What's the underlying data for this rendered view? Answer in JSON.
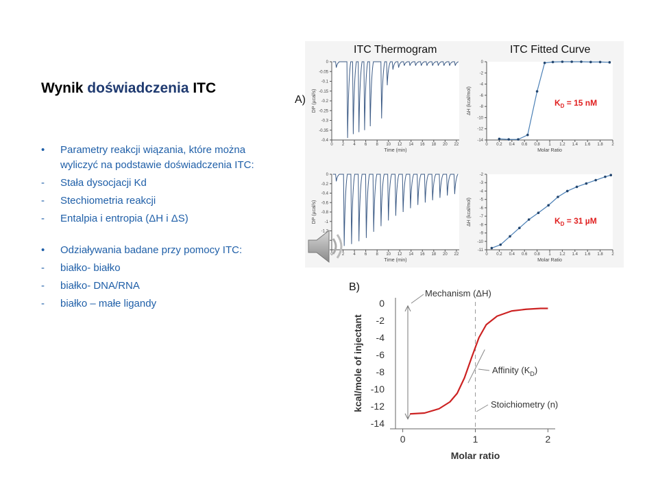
{
  "slide": {
    "title_part1": "Wynik ",
    "title_accent": "doświadczenia",
    "title_part2": " ITC",
    "bullets": [
      {
        "marker": "•",
        "text": "Parametry reakcji wiązania, które można wyliczyć na podstawie doświadczenia ITC:"
      },
      {
        "marker": "-",
        "text": "Stała dysocjacji Kd"
      },
      {
        "marker": "-",
        "text": "Stechiometria reakcji"
      },
      {
        "marker": "-",
        "text": "Entalpia i entropia (ΔH i ΔS)"
      }
    ],
    "bullets2": [
      {
        "marker": "•",
        "text": "Odziaływania badane przy pomocy ITC:"
      },
      {
        "marker": "-",
        "text": "białko- białko"
      },
      {
        "marker": "-",
        "text": "białko- DNA/RNA"
      },
      {
        "marker": "-",
        "text": "białko – małe ligandy"
      }
    ]
  },
  "figure": {
    "label_a": "A)",
    "label_b": "B)",
    "col1_title": "ITC Thermogram",
    "col2_title": "ITC Fitted Curve",
    "thermo_ylabel": "DP (µcal/s)",
    "thermo_xlabel": "Time (min)",
    "fit_ylabel": "ΔH (kcal/mol)",
    "fit_xlabel": "Molar Ratio",
    "kd_top": "K",
    "kd_top_sub": "D",
    "kd_top_val": " = 15 nM",
    "kd_bottom": "K",
    "kd_bottom_sub": "D",
    "kd_bottom_val": " = 31 µM",
    "b_ylabel": "kcal/mole of injectant",
    "b_xlabel": "Molar ratio",
    "b_annot_mechanism": "Mechanism (ΔH)",
    "b_annot_affinity": "Affinity (K",
    "b_annot_affinity_sub": "D",
    "b_annot_affinity_end": ")",
    "b_annot_stoich": "Stoichiometry (n)"
  },
  "chart_data": [
    {
      "type": "line",
      "title": "ITC Thermogram",
      "xlabel": "Time (min)",
      "ylabel": "DP (µcal/s)",
      "xlim": [
        0,
        22.5
      ],
      "ylim": [
        -0.4,
        0
      ],
      "xticks": [
        "0",
        "2",
        "4",
        "6",
        "8",
        "10",
        "12",
        "14",
        "16",
        "18",
        "20",
        "22"
      ],
      "yticks": [
        "0",
        "-0.05",
        "-0.1",
        "-0.15",
        "-0.2",
        "-0.25",
        "-0.3",
        "-0.35",
        "-0.4"
      ],
      "peaks": {
        "x": [
          0.8,
          2.8,
          3.8,
          4.8,
          5.8,
          6.8,
          8.8,
          9.8,
          10.8,
          11.8,
          12.8,
          13.8,
          14.8,
          15.8,
          16.8,
          17.8,
          18.8,
          19.8,
          20.8,
          21.8
        ],
        "depth": [
          -0.03,
          -0.39,
          -0.37,
          -0.36,
          -0.35,
          -0.33,
          -0.29,
          -0.12,
          -0.04,
          -0.03,
          -0.02,
          -0.02,
          -0.02,
          -0.02,
          -0.02,
          -0.02,
          -0.02,
          -0.02,
          -0.02,
          -0.02
        ]
      }
    },
    {
      "type": "line",
      "title": "ITC Fitted Curve",
      "xlabel": "Molar Ratio",
      "ylabel": "ΔH (kcal/mol)",
      "xlim": [
        0,
        2
      ],
      "ylim": [
        -14,
        0
      ],
      "xticks": [
        "0",
        "0.2",
        "0.4",
        "0.6",
        "0.8",
        "1",
        "1.2",
        "1.4",
        "1.6",
        "1.8",
        "2"
      ],
      "yticks": [
        "0",
        "-2",
        "-4",
        "-6",
        "-8",
        "-10",
        "-12",
        "-14"
      ],
      "x": [
        0.2,
        0.35,
        0.5,
        0.65,
        0.8,
        0.92,
        1.05,
        1.2,
        1.35,
        1.5,
        1.65,
        1.8,
        1.95
      ],
      "y": [
        -13.8,
        -13.9,
        -13.9,
        -13.1,
        -5.3,
        -0.2,
        -0.05,
        0,
        0,
        0,
        -0.05,
        -0.05,
        -0.1
      ]
    },
    {
      "type": "line",
      "xlabel": "Time (min)",
      "ylabel": "DP (µcal/s)",
      "xlim": [
        0,
        22.5
      ],
      "ylim": [
        -1.6,
        0
      ],
      "xticks": [
        "0",
        "2",
        "4",
        "6",
        "8",
        "10",
        "12",
        "14",
        "16",
        "18",
        "20",
        "22"
      ],
      "yticks": [
        "0",
        "-0.2",
        "-0.4",
        "-0.6",
        "-0.8",
        "-1",
        "-1.2",
        "-1.4",
        "-1.6"
      ],
      "peaks": {
        "x": [
          0.8,
          2.2,
          3.5,
          4.8,
          6.1,
          7.4,
          8.7,
          10.0,
          11.3,
          12.6,
          13.9,
          15.2,
          16.5,
          17.8,
          19.1,
          20.4,
          21.7
        ],
        "depth": [
          -0.15,
          -1.52,
          -1.48,
          -1.42,
          -1.35,
          -1.22,
          -1.1,
          -0.98,
          -0.88,
          -0.8,
          -0.72,
          -0.65,
          -0.6,
          -0.55,
          -0.5,
          -0.45,
          -0.42
        ]
      }
    },
    {
      "type": "line",
      "xlabel": "Molar Ratio",
      "ylabel": "ΔH (kcal/mol)",
      "xlim": [
        0,
        2
      ],
      "ylim": [
        -11,
        -2
      ],
      "xticks": [
        "0",
        "0.2",
        "0.4",
        "0.6",
        "0.8",
        "1",
        "1.2",
        "1.4",
        "1.6",
        "1.8",
        "2"
      ],
      "yticks": [
        "-2",
        "-3",
        "-4",
        "-5",
        "-6",
        "-7",
        "-8",
        "-9",
        "-10",
        "-11"
      ],
      "x": [
        0.08,
        0.22,
        0.37,
        0.52,
        0.67,
        0.82,
        0.98,
        1.13,
        1.28,
        1.43,
        1.58,
        1.73,
        1.88,
        1.97
      ],
      "y": [
        -10.8,
        -10.4,
        -9.4,
        -8.4,
        -7.4,
        -6.6,
        -5.7,
        -4.7,
        -4.0,
        -3.5,
        -3.1,
        -2.7,
        -2.3,
        -2.1
      ]
    },
    {
      "type": "line",
      "xlabel": "Molar ratio",
      "ylabel": "kcal/mole of injectant",
      "xlim": [
        -0.1,
        2.1
      ],
      "ylim": [
        -14,
        0
      ],
      "xticks": [
        "0",
        "1",
        "2"
      ],
      "yticks": [
        "0",
        "-2",
        "-4",
        "-6",
        "-8",
        "-10",
        "-12",
        "-14"
      ],
      "x": [
        0.1,
        0.3,
        0.5,
        0.65,
        0.75,
        0.85,
        0.95,
        1.05,
        1.15,
        1.3,
        1.5,
        1.7,
        1.9,
        2.0
      ],
      "y": [
        -12.9,
        -12.8,
        -12.3,
        -11.5,
        -10.5,
        -8.7,
        -6.3,
        -4.0,
        -2.5,
        -1.5,
        -0.9,
        -0.7,
        -0.6,
        -0.6
      ],
      "color": "#cc2222"
    }
  ]
}
